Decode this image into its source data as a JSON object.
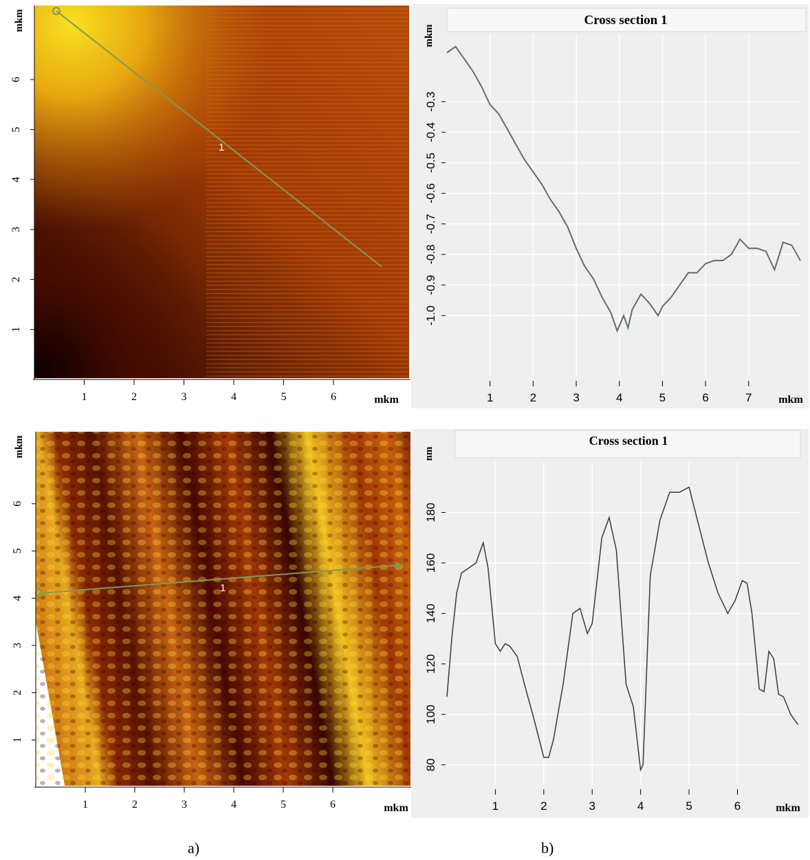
{
  "colors": {
    "panel_bg": "#efefef",
    "grid": "#ffffff",
    "profile_line": "#5f6f5f",
    "scan_line": "#7f9a55",
    "afm_dark": "#1a0000",
    "afm_mid": "#a13a05",
    "afm_bright": "#f8e020"
  },
  "captions": {
    "left": "a)",
    "right": "b)"
  },
  "top_image": {
    "y_unit": "mkm",
    "x_unit": "mkm",
    "y_ticks": [
      "1",
      "2",
      "3",
      "4",
      "5",
      "6"
    ],
    "x_ticks": [
      "1",
      "2",
      "3",
      "4",
      "5",
      "6"
    ],
    "line_label": "1"
  },
  "bottom_image": {
    "y_unit": "mkm",
    "x_unit": "mkm",
    "y_ticks": [
      "1",
      "2",
      "3",
      "4",
      "5",
      "6"
    ],
    "x_ticks": [
      "1",
      "2",
      "3",
      "4",
      "5",
      "6"
    ],
    "line_label": "1"
  },
  "chart_data": [
    {
      "type": "line",
      "title": "Cross section 1",
      "ylabel": "mkm",
      "xlabel": "mkm",
      "x_ticks": [
        "1",
        "2",
        "3",
        "4",
        "5",
        "6",
        "7"
      ],
      "y_ticks": [
        "-1.0",
        "-0.9",
        "-0.8",
        "-0.7",
        "-0.6",
        "-0.5",
        "-0.4",
        "-0.3"
      ],
      "xlim": [
        0,
        8.2
      ],
      "ylim": [
        -1.2,
        -0.08
      ],
      "grid": true,
      "series": [
        {
          "x": [
            0.0,
            0.2,
            0.4,
            0.6,
            0.8,
            1.0,
            1.2,
            1.4,
            1.6,
            1.8,
            2.0,
            2.2,
            2.4,
            2.6,
            2.8,
            3.0,
            3.2,
            3.4,
            3.6,
            3.8,
            3.95,
            4.1,
            4.2,
            4.3,
            4.5,
            4.7,
            4.9,
            5.0,
            5.2,
            5.4,
            5.6,
            5.8,
            6.0,
            6.2,
            6.4,
            6.6,
            6.8,
            7.0,
            7.2,
            7.4,
            7.6,
            7.8,
            8.0,
            8.2
          ],
          "y": [
            -0.14,
            -0.12,
            -0.16,
            -0.2,
            -0.25,
            -0.31,
            -0.34,
            -0.39,
            -0.44,
            -0.49,
            -0.53,
            -0.57,
            -0.62,
            -0.66,
            -0.71,
            -0.78,
            -0.84,
            -0.88,
            -0.94,
            -0.99,
            -1.05,
            -1.0,
            -1.04,
            -0.98,
            -0.93,
            -0.96,
            -1.0,
            -0.97,
            -0.94,
            -0.9,
            -0.86,
            -0.86,
            -0.83,
            -0.82,
            -0.82,
            -0.8,
            -0.75,
            -0.78,
            -0.78,
            -0.79,
            -0.85,
            -0.76,
            -0.77,
            -0.82
          ]
        }
      ]
    },
    {
      "type": "line",
      "title": "Cross section 1",
      "ylabel": "nm",
      "xlabel": "mkm",
      "x_ticks": [
        "1",
        "2",
        "3",
        "4",
        "5",
        "6"
      ],
      "y_ticks": [
        "80",
        "100",
        "120",
        "140",
        "160",
        "180"
      ],
      "xlim": [
        0,
        7.3
      ],
      "ylim": [
        72,
        200
      ],
      "grid": true,
      "series": [
        {
          "x": [
            0.0,
            0.1,
            0.2,
            0.3,
            0.45,
            0.6,
            0.75,
            0.85,
            1.0,
            1.1,
            1.2,
            1.3,
            1.45,
            1.6,
            1.8,
            2.0,
            2.1,
            2.2,
            2.4,
            2.6,
            2.75,
            2.9,
            3.0,
            3.2,
            3.35,
            3.5,
            3.7,
            3.85,
            4.0,
            4.05,
            4.2,
            4.4,
            4.6,
            4.8,
            5.0,
            5.2,
            5.4,
            5.6,
            5.8,
            5.95,
            6.1,
            6.2,
            6.3,
            6.45,
            6.55,
            6.65,
            6.75,
            6.85,
            6.95,
            7.1,
            7.25
          ],
          "y": [
            107,
            130,
            148,
            156,
            158,
            160,
            168,
            158,
            128,
            125,
            128,
            127,
            123,
            112,
            98,
            83,
            83,
            90,
            112,
            140,
            142,
            132,
            136,
            170,
            178,
            165,
            112,
            103,
            78,
            80,
            155,
            177,
            188,
            188,
            190,
            175,
            160,
            148,
            140,
            145,
            153,
            152,
            140,
            110,
            109,
            125,
            122,
            108,
            107,
            100,
            96
          ]
        }
      ]
    }
  ]
}
